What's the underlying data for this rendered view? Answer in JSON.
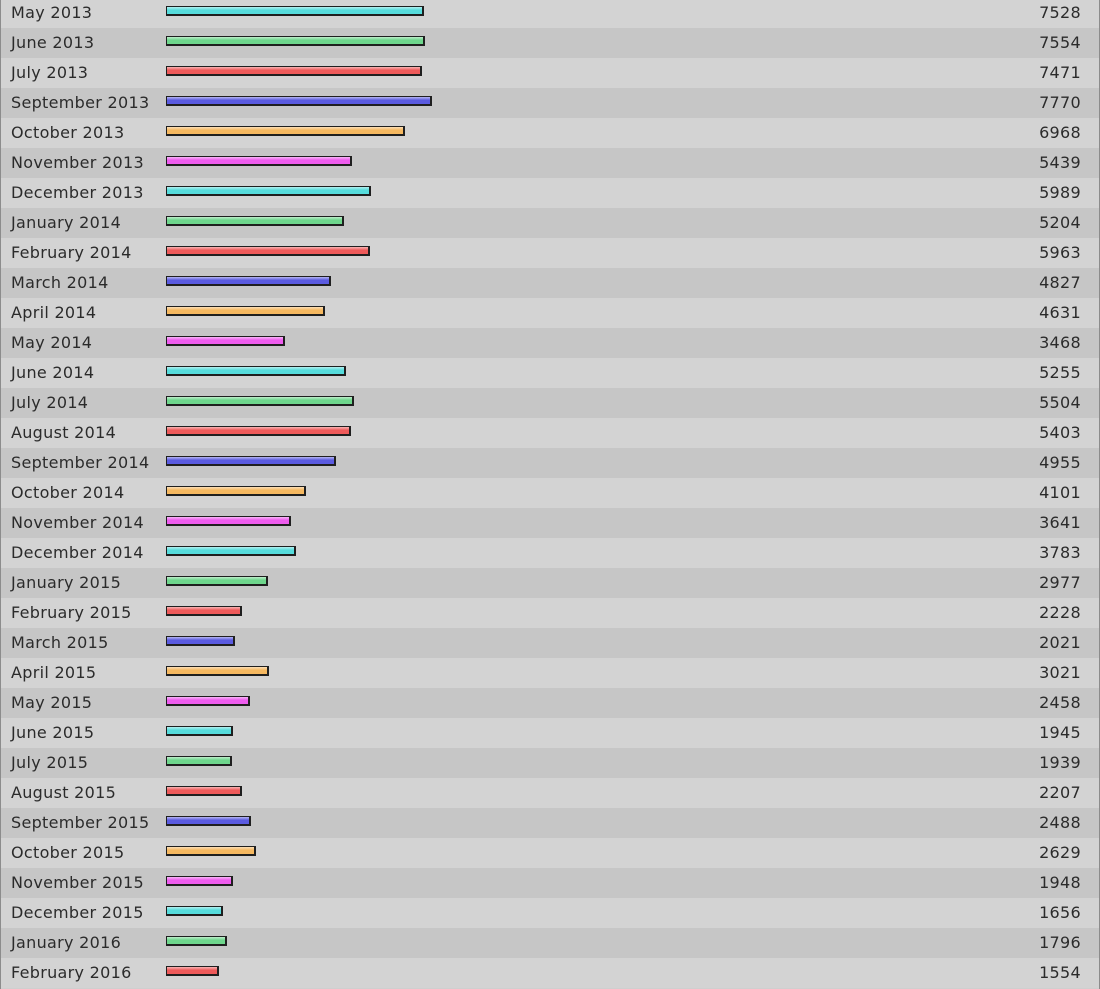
{
  "chart_data": {
    "type": "bar",
    "orientation": "horizontal",
    "grid": false,
    "categories": [
      "May 2013",
      "June 2013",
      "July 2013",
      "September 2013",
      "October 2013",
      "November 2013",
      "December 2013",
      "January 2014",
      "February 2014",
      "March 2014",
      "April 2014",
      "May 2014",
      "June 2014",
      "July 2014",
      "August 2014",
      "September 2014",
      "October 2014",
      "November 2014",
      "December 2014",
      "January 2015",
      "February 2015",
      "March 2015",
      "April 2015",
      "May 2015",
      "June 2015",
      "July 2015",
      "August 2015",
      "September 2015",
      "October 2015",
      "November 2015",
      "December 2015",
      "January 2016",
      "February 2016"
    ],
    "values": [
      7528,
      7554,
      7471,
      7770,
      6968,
      5439,
      5989,
      5204,
      5963,
      4827,
      4631,
      3468,
      5255,
      5504,
      5403,
      4955,
      4101,
      3641,
      3783,
      2977,
      2228,
      2021,
      3021,
      2458,
      1945,
      1939,
      2207,
      2488,
      2629,
      1948,
      1656,
      1796,
      1554
    ],
    "xlim": [
      0,
      7770
    ],
    "bar_color_cycle": [
      "#56dcdc",
      "#6ed68c",
      "#ee5a5a",
      "#5b5be0",
      "#f5b860",
      "#ee5cee"
    ],
    "row_colors": [
      "#d3d3d3",
      "#c6c6c6"
    ]
  }
}
